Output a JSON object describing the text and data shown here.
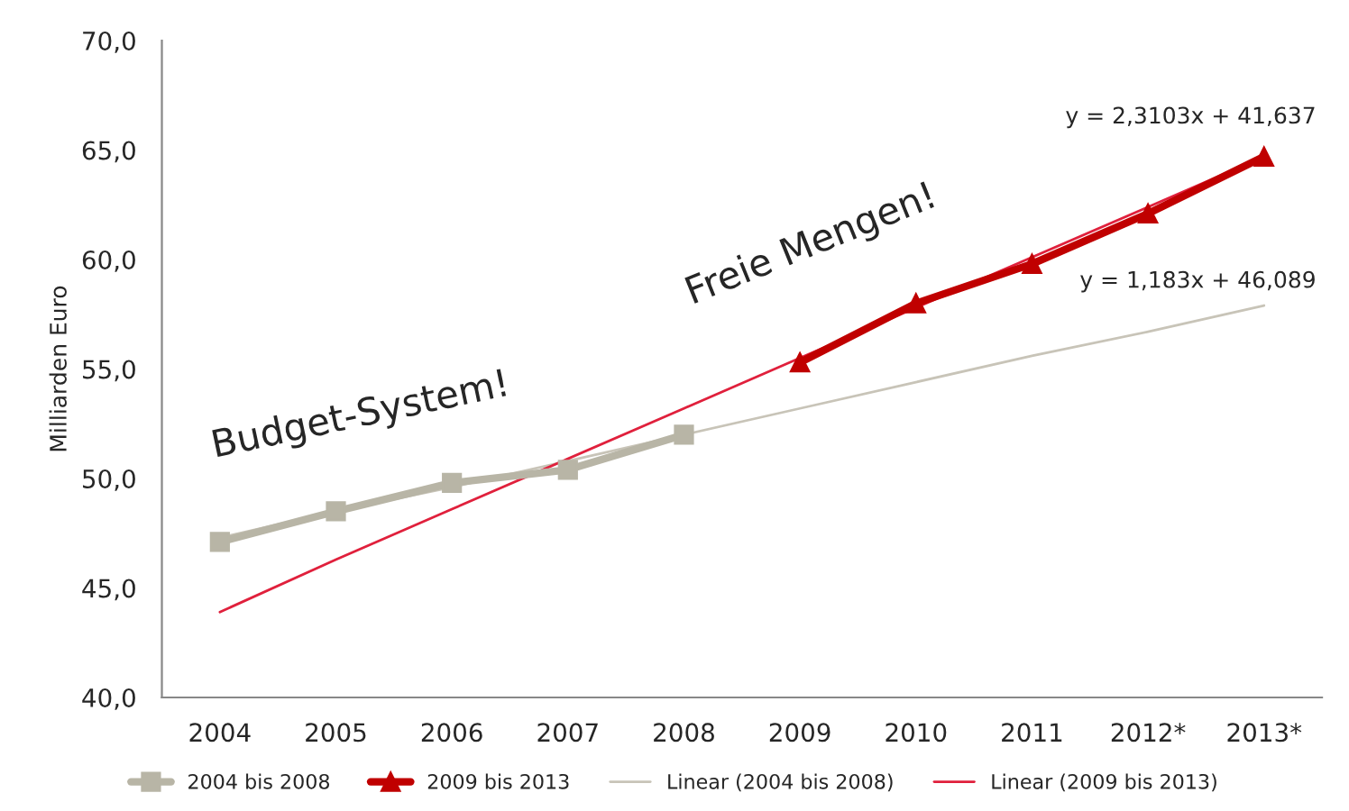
{
  "chart_data": {
    "type": "line",
    "ylabel": "Milliarden Euro",
    "categories": [
      "2004",
      "2005",
      "2006",
      "2007",
      "2008",
      "2009",
      "2010",
      "2011",
      "2012*",
      "2013*"
    ],
    "series": [
      {
        "name": "2004 bis 2008",
        "color": "#b8b5a6",
        "marker": "square",
        "values": [
          47.1,
          48.5,
          49.8,
          50.4,
          52.0,
          null,
          null,
          null,
          null,
          null
        ]
      },
      {
        "name": "2009 bis 2013",
        "color": "#c00000",
        "marker": "triangle",
        "values": [
          null,
          null,
          null,
          null,
          null,
          55.3,
          58.0,
          59.8,
          62.1,
          64.7
        ]
      },
      {
        "name": "Linear (2004 bis 2008)",
        "color": "#c8c4b8",
        "marker": "none",
        "values": [
          47.3,
          48.5,
          49.6,
          50.8,
          52.0,
          53.2,
          54.4,
          55.6,
          56.7,
          57.9
        ]
      },
      {
        "name": "Linear (2009 bis 2013)",
        "color": "#e0203c",
        "marker": "none",
        "values": [
          43.9,
          46.3,
          48.6,
          50.9,
          53.2,
          55.5,
          57.8,
          60.1,
          62.4,
          64.7
        ]
      }
    ],
    "ylim": [
      40,
      70
    ],
    "yticks": [
      {
        "value": 40,
        "label": "40,0"
      },
      {
        "value": 45,
        "label": "45,0"
      },
      {
        "value": 50,
        "label": "50,0"
      },
      {
        "value": 55,
        "label": "55,0"
      },
      {
        "value": 60,
        "label": "60,0"
      },
      {
        "value": 65,
        "label": "65,0"
      },
      {
        "value": 70,
        "label": "70,0"
      }
    ],
    "annotations": [
      "y = 2,3103x + 41,637",
      "y = 1,183x + 46,089",
      "Budget-System!",
      "Freie Mengen!"
    ],
    "grid": false,
    "legend": "bottom"
  }
}
